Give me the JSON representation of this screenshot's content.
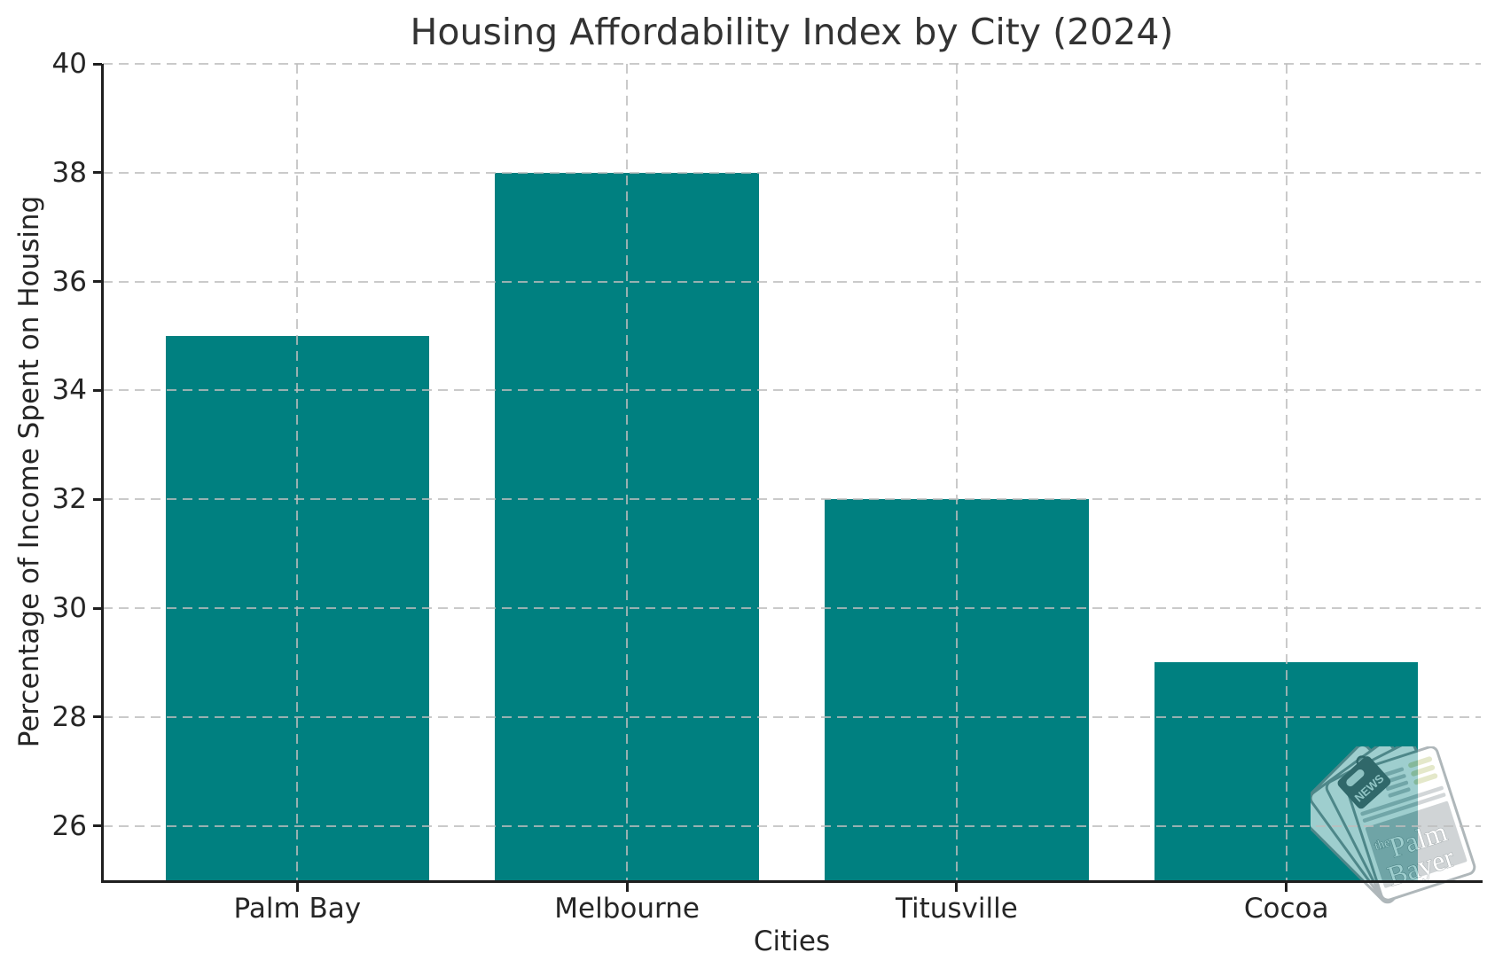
{
  "title": "Housing Affordability Index by City (2024)",
  "chart_data": {
    "type": "bar",
    "title": "Housing Affordability Index by City (2024)",
    "categories": [
      "Palm Bay",
      "Melbourne",
      "Titusville",
      "Cocoa"
    ],
    "values": [
      35,
      38,
      32,
      29
    ],
    "xlabel": "Cities",
    "ylabel": "Percentage of Income Spent on Housing",
    "ylim": [
      25,
      40
    ],
    "yticks": [
      26,
      28,
      30,
      32,
      34,
      36,
      38,
      40
    ],
    "bar_color": "#008080",
    "grid": true,
    "grid_style": "dashed",
    "grid_color": "#bdbdbd",
    "legend": false,
    "bar_width_fraction": 0.8
  },
  "watermark": {
    "news_label": "NEWS",
    "brand_prefix": "the",
    "brand_word1": "Palm",
    "brand_word2": "Bayer"
  }
}
